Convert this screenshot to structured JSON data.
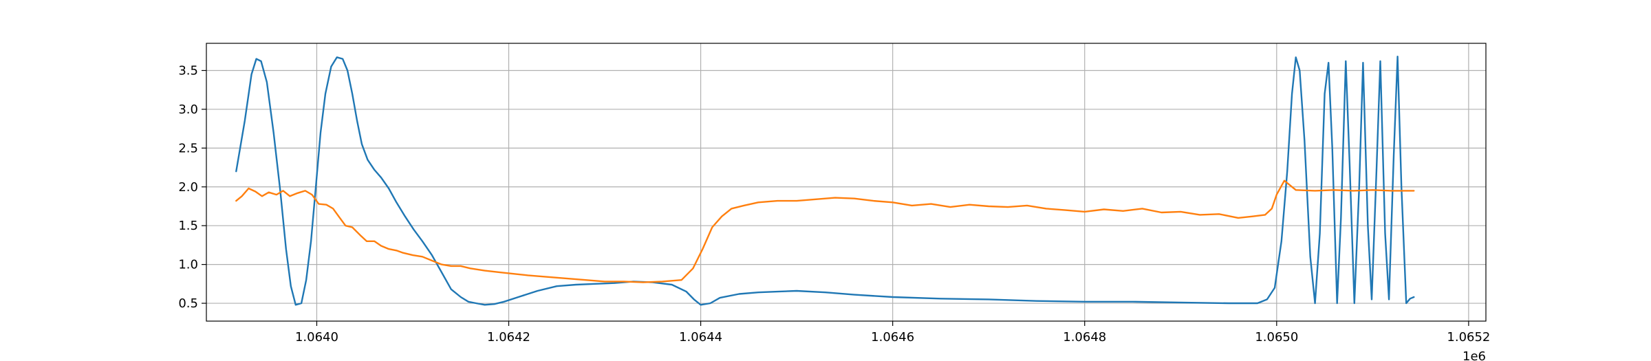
{
  "chart_data": {
    "type": "line",
    "title": "",
    "xlabel": "",
    "ylabel": "",
    "x_offset_label": "1e6",
    "xlim": [
      1063885,
      1065218
    ],
    "ylim": [
      0.27,
      3.85
    ],
    "x_ticks": [
      1064000,
      1064200,
      1064400,
      1064600,
      1064800,
      1065000,
      1065200
    ],
    "x_tick_labels": [
      "1.0640",
      "1.0642",
      "1.0644",
      "1.0646",
      "1.0648",
      "1.0650",
      "1.0652"
    ],
    "y_ticks": [
      0.5,
      1.0,
      1.5,
      2.0,
      2.5,
      3.0,
      3.5
    ],
    "y_tick_labels": [
      "0.5",
      "1.0",
      "1.5",
      "2.0",
      "2.5",
      "3.0",
      "3.5"
    ],
    "grid": true,
    "series": [
      {
        "color": "#1f77b4",
        "x": [
          1063916,
          1063925,
          1063932,
          1063937,
          1063942,
          1063948,
          1063955,
          1063962,
          1063968,
          1063973,
          1063978,
          1063984,
          1063989,
          1063994,
          1063999,
          1064004,
          1064009,
          1064015,
          1064021,
          1064027,
          1064032,
          1064037,
          1064042,
          1064047,
          1064053,
          1064060,
          1064067,
          1064075,
          1064083,
          1064092,
          1064101,
          1064110,
          1064120,
          1064130,
          1064140,
          1064150,
          1064158,
          1064166,
          1064175,
          1064185,
          1064195,
          1064210,
          1064230,
          1064250,
          1064270,
          1064290,
          1064310,
          1064330,
          1064350,
          1064370,
          1064385,
          1064393,
          1064400,
          1064410,
          1064420,
          1064440,
          1064460,
          1064480,
          1064500,
          1064530,
          1064560,
          1064600,
          1064650,
          1064700,
          1064750,
          1064800,
          1064850,
          1064900,
          1064950,
          1064980,
          1064990,
          1064998,
          1065005,
          1065011,
          1065016,
          1065020,
          1065024,
          1065029,
          1065035,
          1065040,
          1065045,
          1065050,
          1065054,
          1065058,
          1065063,
          1065067,
          1065072,
          1065076,
          1065081,
          1065086,
          1065090,
          1065095,
          1065099,
          1065104,
          1065108,
          1065113,
          1065117,
          1065122,
          1065126,
          1065130,
          1065135,
          1065139,
          1065143
        ],
        "y": [
          2.2,
          2.85,
          3.45,
          3.65,
          3.62,
          3.35,
          2.7,
          1.95,
          1.2,
          0.72,
          0.48,
          0.5,
          0.8,
          1.3,
          2.0,
          2.7,
          3.2,
          3.55,
          3.67,
          3.65,
          3.5,
          3.2,
          2.85,
          2.55,
          2.35,
          2.22,
          2.12,
          1.98,
          1.8,
          1.62,
          1.45,
          1.3,
          1.12,
          0.9,
          0.68,
          0.58,
          0.52,
          0.5,
          0.48,
          0.49,
          0.52,
          0.58,
          0.66,
          0.72,
          0.74,
          0.75,
          0.76,
          0.78,
          0.77,
          0.74,
          0.65,
          0.55,
          0.48,
          0.5,
          0.57,
          0.62,
          0.64,
          0.65,
          0.66,
          0.64,
          0.61,
          0.58,
          0.56,
          0.55,
          0.53,
          0.52,
          0.52,
          0.51,
          0.5,
          0.5,
          0.55,
          0.7,
          1.3,
          2.2,
          3.2,
          3.67,
          3.5,
          2.6,
          1.1,
          0.5,
          1.4,
          3.2,
          3.6,
          2.5,
          0.5,
          1.6,
          3.62,
          2.3,
          0.5,
          2.0,
          3.6,
          1.5,
          0.55,
          2.2,
          3.62,
          1.4,
          0.55,
          2.4,
          3.68,
          2.0,
          0.5,
          0.56,
          0.58
        ]
      },
      {
        "color": "#ff7f0e",
        "x": [
          1063916,
          1063922,
          1063929,
          1063936,
          1063943,
          1063950,
          1063958,
          1063965,
          1063972,
          1063980,
          1063988,
          1063995,
          1064002,
          1064010,
          1064017,
          1064024,
          1064030,
          1064037,
          1064045,
          1064052,
          1064060,
          1064067,
          1064075,
          1064083,
          1064090,
          1064100,
          1064110,
          1064120,
          1064130,
          1064140,
          1064150,
          1064160,
          1064175,
          1064190,
          1064205,
          1064220,
          1064240,
          1064260,
          1064280,
          1064300,
          1064320,
          1064340,
          1064360,
          1064380,
          1064392,
          1064402,
          1064412,
          1064422,
          1064432,
          1064445,
          1064460,
          1064480,
          1064500,
          1064520,
          1064540,
          1064560,
          1064580,
          1064600,
          1064620,
          1064640,
          1064660,
          1064680,
          1064700,
          1064720,
          1064740,
          1064760,
          1064780,
          1064800,
          1064820,
          1064840,
          1064860,
          1064880,
          1064900,
          1064920,
          1064940,
          1064960,
          1064975,
          1064988,
          1064995,
          1065000,
          1065008,
          1065020,
          1065040,
          1065060,
          1065080,
          1065100,
          1065120,
          1065143
        ],
        "y": [
          1.82,
          1.88,
          1.98,
          1.94,
          1.88,
          1.93,
          1.9,
          1.95,
          1.88,
          1.92,
          1.95,
          1.9,
          1.78,
          1.77,
          1.72,
          1.6,
          1.5,
          1.48,
          1.38,
          1.3,
          1.3,
          1.24,
          1.2,
          1.18,
          1.15,
          1.12,
          1.1,
          1.05,
          1.0,
          0.98,
          0.98,
          0.95,
          0.92,
          0.9,
          0.88,
          0.86,
          0.84,
          0.82,
          0.8,
          0.78,
          0.78,
          0.77,
          0.78,
          0.8,
          0.95,
          1.2,
          1.48,
          1.62,
          1.72,
          1.76,
          1.8,
          1.82,
          1.82,
          1.84,
          1.86,
          1.85,
          1.82,
          1.8,
          1.76,
          1.78,
          1.74,
          1.77,
          1.75,
          1.74,
          1.76,
          1.72,
          1.7,
          1.68,
          1.71,
          1.69,
          1.72,
          1.67,
          1.68,
          1.64,
          1.65,
          1.6,
          1.62,
          1.64,
          1.72,
          1.9,
          2.08,
          1.96,
          1.95,
          1.96,
          1.95,
          1.96,
          1.95,
          1.95
        ]
      }
    ]
  }
}
